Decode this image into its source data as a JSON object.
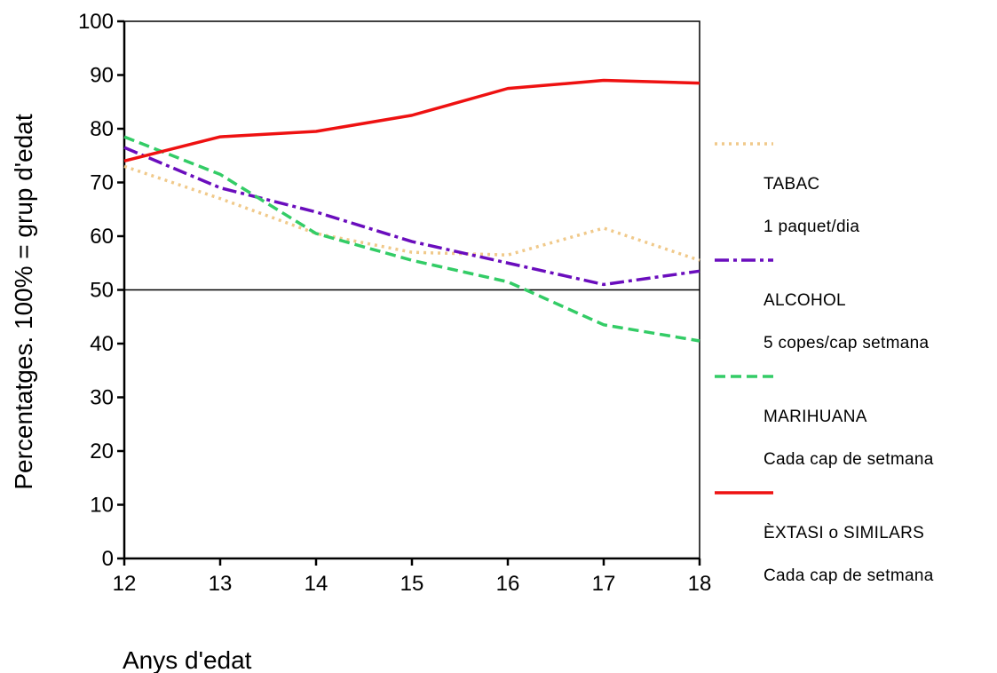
{
  "chart_data": {
    "type": "line",
    "xlabel": "Anys d'edat",
    "ylabel": "Percentatges. 100% = grup d'edat",
    "x": [
      12,
      13,
      14,
      15,
      16,
      17,
      18
    ],
    "xlim": [
      12,
      18
    ],
    "ylim": [
      0,
      100
    ],
    "yticks": [
      0,
      10,
      20,
      30,
      40,
      50,
      60,
      70,
      80,
      90,
      100
    ],
    "reference_line": 50,
    "grid": false,
    "legend_position": "right",
    "series": [
      {
        "name_line1": "TABAC",
        "name_line2": "1 paquet/dia",
        "color": "#f0c98a",
        "style": "dotted",
        "values": [
          73,
          67,
          60.5,
          57,
          56.5,
          61.5,
          55.5
        ]
      },
      {
        "name_line1": "ALCOHOL",
        "name_line2": "5 copes/cap setmana",
        "color": "#6a0dbd",
        "style": "dashdot",
        "values": [
          76.5,
          69,
          64.5,
          59,
          55,
          51,
          53.5
        ]
      },
      {
        "name_line1": "MARIHUANA",
        "name_line2": "Cada cap de setmana",
        "color": "#33cc66",
        "style": "dashed",
        "values": [
          78.5,
          71.5,
          60.5,
          55.5,
          51.5,
          43.5,
          40.5
        ]
      },
      {
        "name_line1": "ÈXTASI o SIMILARS",
        "name_line2": "Cada cap de setmana",
        "color": "#ee1111",
        "style": "solid",
        "values": [
          74,
          78.5,
          79.5,
          82.5,
          87.5,
          89,
          88.5
        ]
      }
    ]
  }
}
